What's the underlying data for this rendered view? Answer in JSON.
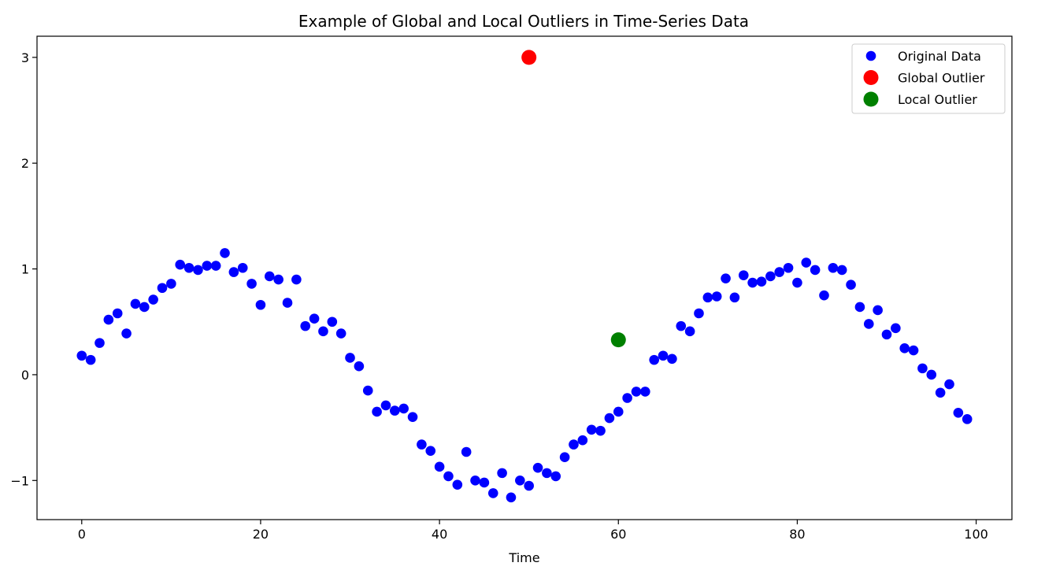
{
  "chart_data": {
    "type": "scatter",
    "title": "Example of Global and Local Outliers in Time-Series Data",
    "xlabel": "Time",
    "ylabel": "",
    "xlim": [
      -5,
      104
    ],
    "ylim": [
      -1.37,
      3.2
    ],
    "xticks": [
      0,
      20,
      40,
      60,
      80,
      100
    ],
    "yticks": [
      -1,
      0,
      1,
      2,
      3
    ],
    "grid": false,
    "legend_position": "top-right",
    "series": [
      {
        "name": "Original Data",
        "color": "#0000ff",
        "marker_size": "normal",
        "points": [
          [
            0,
            0.18
          ],
          [
            1,
            0.14
          ],
          [
            2,
            0.3
          ],
          [
            3,
            0.52
          ],
          [
            4,
            0.58
          ],
          [
            5,
            0.39
          ],
          [
            6,
            0.67
          ],
          [
            7,
            0.64
          ],
          [
            8,
            0.71
          ],
          [
            9,
            0.82
          ],
          [
            10,
            0.86
          ],
          [
            11,
            1.04
          ],
          [
            12,
            1.01
          ],
          [
            13,
            0.99
          ],
          [
            14,
            1.03
          ],
          [
            15,
            1.03
          ],
          [
            16,
            1.15
          ],
          [
            17,
            0.97
          ],
          [
            18,
            1.01
          ],
          [
            19,
            0.86
          ],
          [
            20,
            0.66
          ],
          [
            21,
            0.93
          ],
          [
            22,
            0.9
          ],
          [
            23,
            0.68
          ],
          [
            24,
            0.9
          ],
          [
            25,
            0.46
          ],
          [
            26,
            0.53
          ],
          [
            27,
            0.41
          ],
          [
            28,
            0.5
          ],
          [
            29,
            0.39
          ],
          [
            30,
            0.16
          ],
          [
            31,
            0.08
          ],
          [
            32,
            -0.15
          ],
          [
            33,
            -0.35
          ],
          [
            34,
            -0.29
          ],
          [
            35,
            -0.34
          ],
          [
            36,
            -0.32
          ],
          [
            37,
            -0.4
          ],
          [
            38,
            -0.66
          ],
          [
            39,
            -0.72
          ],
          [
            40,
            -0.87
          ],
          [
            41,
            -0.96
          ],
          [
            42,
            -1.04
          ],
          [
            43,
            -0.73
          ],
          [
            44,
            -1.0
          ],
          [
            45,
            -1.02
          ],
          [
            46,
            -1.12
          ],
          [
            47,
            -0.93
          ],
          [
            48,
            -1.16
          ],
          [
            49,
            -1.0
          ],
          [
            50,
            -1.05
          ],
          [
            51,
            -0.88
          ],
          [
            52,
            -0.93
          ],
          [
            53,
            -0.96
          ],
          [
            54,
            -0.78
          ],
          [
            55,
            -0.66
          ],
          [
            56,
            -0.62
          ],
          [
            57,
            -0.52
          ],
          [
            58,
            -0.53
          ],
          [
            59,
            -0.41
          ],
          [
            60,
            -0.35
          ],
          [
            61,
            -0.22
          ],
          [
            62,
            -0.16
          ],
          [
            63,
            -0.16
          ],
          [
            64,
            0.14
          ],
          [
            65,
            0.18
          ],
          [
            66,
            0.15
          ],
          [
            67,
            0.46
          ],
          [
            68,
            0.41
          ],
          [
            69,
            0.58
          ],
          [
            70,
            0.73
          ],
          [
            71,
            0.74
          ],
          [
            72,
            0.91
          ],
          [
            73,
            0.73
          ],
          [
            74,
            0.94
          ],
          [
            75,
            0.87
          ],
          [
            76,
            0.88
          ],
          [
            77,
            0.93
          ],
          [
            78,
            0.97
          ],
          [
            79,
            1.01
          ],
          [
            80,
            0.87
          ],
          [
            81,
            1.06
          ],
          [
            82,
            0.99
          ],
          [
            83,
            0.75
          ],
          [
            84,
            1.01
          ],
          [
            85,
            0.99
          ],
          [
            86,
            0.85
          ],
          [
            87,
            0.64
          ],
          [
            88,
            0.48
          ],
          [
            89,
            0.61
          ],
          [
            90,
            0.38
          ],
          [
            91,
            0.44
          ],
          [
            92,
            0.25
          ],
          [
            93,
            0.23
          ],
          [
            94,
            0.06
          ],
          [
            95,
            0.0
          ],
          [
            96,
            -0.17
          ],
          [
            97,
            -0.09
          ],
          [
            98,
            -0.36
          ],
          [
            99,
            -0.42
          ]
        ]
      },
      {
        "name": "Global Outlier",
        "color": "#ff0000",
        "marker_size": "large",
        "points": [
          [
            50,
            3.0
          ]
        ]
      },
      {
        "name": "Local Outlier",
        "color": "#008000",
        "marker_size": "large",
        "points": [
          [
            60,
            0.33
          ]
        ]
      }
    ]
  }
}
